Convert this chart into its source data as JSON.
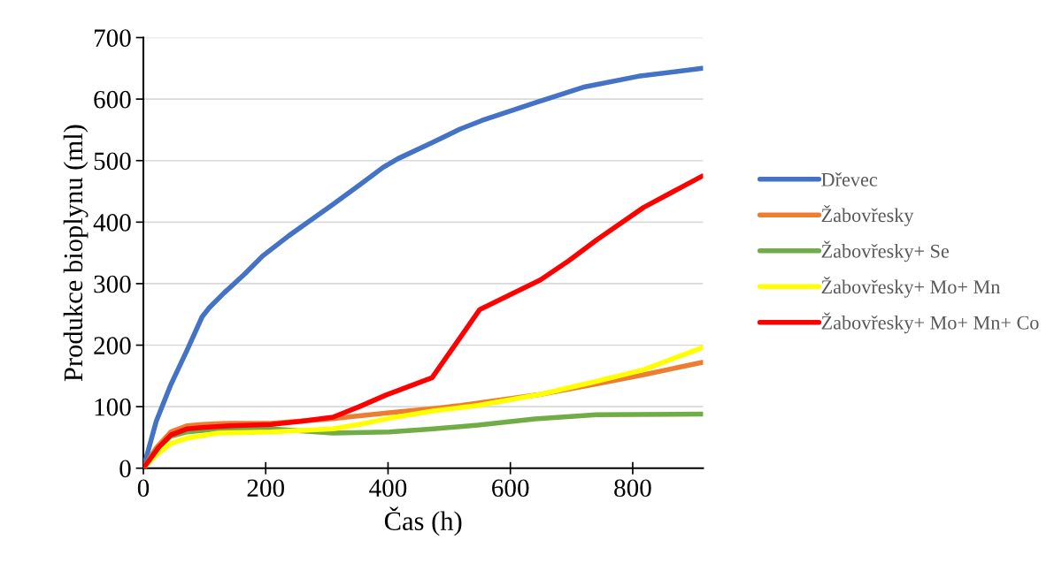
{
  "chart_data": {
    "type": "line",
    "xlabel": "Čas (h)",
    "ylabel": "Produkce bioplynu (ml)",
    "xlim": [
      0,
      915
    ],
    "xticks": [
      0,
      200,
      400,
      600,
      800
    ],
    "ylim": [
      0,
      700
    ],
    "yticks": [
      0,
      100,
      200,
      300,
      400,
      500,
      600,
      700
    ],
    "grid": "y",
    "legend": "right",
    "marker": "none",
    "line_style": "solid",
    "series": [
      {
        "name": "Dřevec",
        "color": "#4472c4",
        "x": [
          0,
          21,
          45,
          72,
          96,
          108,
          132,
          166,
          195,
          238,
          310,
          353,
          392,
          416,
          474,
          517,
          553,
          640,
          722,
          809,
          914
        ],
        "values": [
          0,
          76,
          136,
          193,
          246,
          261,
          285,
          316,
          345,
          378,
          429,
          460,
          489,
          503,
          530,
          551,
          565,
          594,
          620,
          637,
          650
        ]
      },
      {
        "name": "Žabovřesky",
        "color": "#ed7d31",
        "x": [
          0,
          21,
          45,
          72,
          96,
          142,
          209,
          315,
          402,
          474,
          519,
          649,
          736,
          818,
          914
        ],
        "values": [
          0,
          33,
          59,
          69,
          71,
          73,
          73,
          81,
          90,
          97,
          102,
          120,
          136,
          152,
          172
        ]
      },
      {
        "name": "Žabovřesky+ Se",
        "color": "#70ad47",
        "x": [
          0,
          21,
          45,
          72,
          122,
          209,
          310,
          402,
          474,
          547,
          640,
          741,
          914
        ],
        "values": [
          0,
          30,
          52,
          59,
          64,
          64,
          57,
          59,
          64,
          70,
          80,
          87,
          88
        ]
      },
      {
        "name": "Žabovřesky+ Mo+ Mn",
        "color": "#ffff00",
        "x": [
          0,
          21,
          45,
          72,
          122,
          209,
          310,
          353,
          402,
          474,
          547,
          649,
          736,
          818,
          914
        ],
        "values": [
          0,
          21,
          40,
          49,
          57,
          59,
          64,
          71,
          81,
          93,
          102,
          120,
          140,
          160,
          196
        ]
      },
      {
        "name": "Žabovřesky+ Mo+ Mn+ Co",
        "color": "#ff0000",
        "x": [
          0,
          26,
          45,
          72,
          96,
          142,
          209,
          257,
          310,
          353,
          397,
          472,
          550,
          649,
          695,
          741,
          818,
          914
        ],
        "values": [
          0,
          35,
          54,
          64,
          66,
          69,
          71,
          76,
          83,
          100,
          119,
          147,
          258,
          306,
          337,
          371,
          424,
          475
        ]
      }
    ]
  }
}
